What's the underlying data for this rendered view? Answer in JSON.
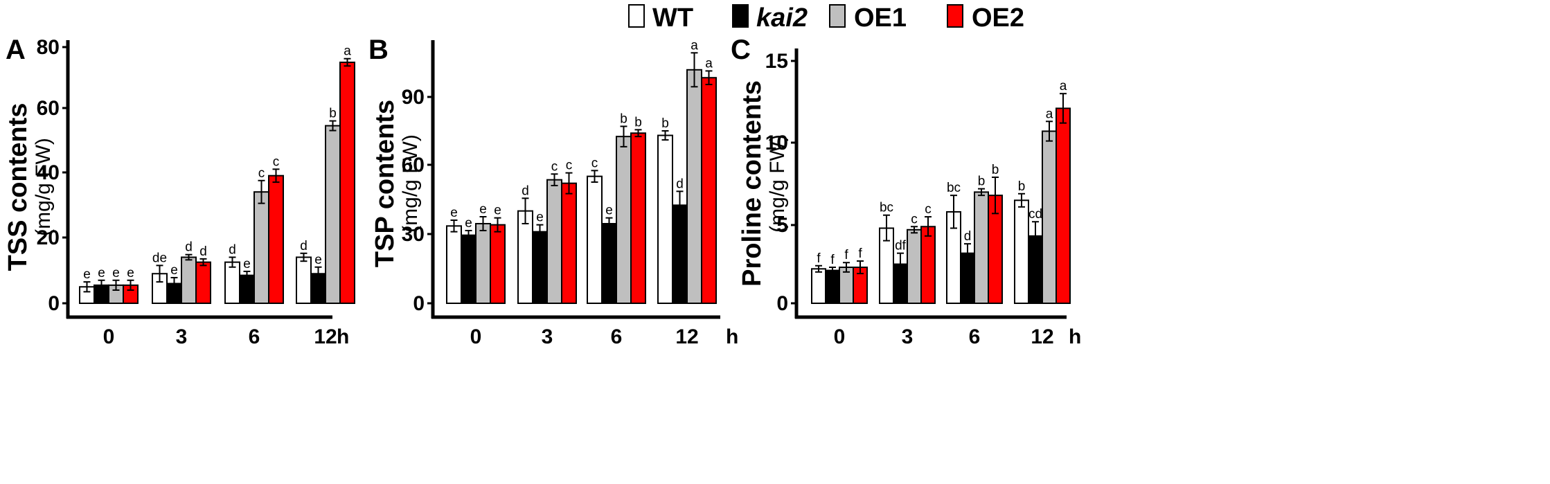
{
  "legend": {
    "entries": [
      {
        "name": "WT",
        "color": "#ffffff",
        "italic": false
      },
      {
        "name": "kai2",
        "color": "#000000",
        "italic": true
      },
      {
        "name": "OE1",
        "color": "#bfbfbf",
        "italic": false
      },
      {
        "name": "OE2",
        "color": "#ff0000",
        "italic": false
      }
    ]
  },
  "chart_data": [
    {
      "panel": "A",
      "type": "bar",
      "ylabel": "TSS contents",
      "ylabel_unit": "(mg/g FW)",
      "ylim": [
        0,
        80
      ],
      "yticks": [
        "0",
        "20",
        "40",
        "60",
        "80"
      ],
      "ytick_values": [
        0,
        20,
        40,
        60,
        80
      ],
      "categories": [
        "0",
        "3",
        "6",
        "12"
      ],
      "x_unit": "h",
      "series": [
        {
          "name": "WT",
          "color": "#ffffff",
          "values": [
            5.0,
            9.0,
            12.5,
            14.0
          ],
          "errors": [
            1.5,
            2.5,
            1.5,
            1.2
          ],
          "sig": [
            "e",
            "de",
            "d",
            "d"
          ]
        },
        {
          "name": "kai2",
          "color": "#000000",
          "values": [
            5.5,
            6.0,
            8.5,
            9.0
          ],
          "errors": [
            1.5,
            1.8,
            1.2,
            2.0
          ],
          "sig": [
            "e",
            "e",
            "e",
            "e"
          ]
        },
        {
          "name": "OE1",
          "color": "#bfbfbf",
          "values": [
            5.5,
            14.0,
            34.0,
            54.5
          ],
          "errors": [
            1.5,
            0.8,
            3.5,
            1.5
          ],
          "sig": [
            "e",
            "d",
            "c",
            "b"
          ]
        },
        {
          "name": "OE2",
          "color": "#ff0000",
          "values": [
            5.5,
            12.5,
            39.0,
            75.0
          ],
          "errors": [
            1.5,
            1.0,
            2.0,
            1.2
          ],
          "sig": [
            "e",
            "d",
            "c",
            "a"
          ]
        }
      ]
    },
    {
      "panel": "B",
      "type": "bar",
      "ylabel": "TSP contents",
      "ylabel_unit": "(mg/g FW)",
      "ylim": [
        0,
        115
      ],
      "yticks": [
        "0",
        "30",
        "60",
        "90"
      ],
      "ytick_values": [
        0,
        30,
        60,
        90
      ],
      "categories": [
        "0",
        "3",
        "6",
        "12"
      ],
      "x_unit": "h",
      "series": [
        {
          "name": "WT",
          "color": "#ffffff",
          "values": [
            33.5,
            40.0,
            55.0,
            73.0
          ],
          "errors": [
            2.5,
            5.5,
            2.5,
            2.0
          ],
          "sig": [
            "e",
            "d",
            "c",
            "b"
          ]
        },
        {
          "name": "kai2",
          "color": "#000000",
          "values": [
            29.5,
            31.0,
            34.5,
            42.5
          ],
          "errors": [
            2.0,
            3.0,
            2.5,
            6.0
          ],
          "sig": [
            "e",
            "e",
            "e",
            "d"
          ]
        },
        {
          "name": "OE1",
          "color": "#bfbfbf",
          "values": [
            34.5,
            53.5,
            72.5,
            102.0
          ],
          "errors": [
            3.0,
            2.5,
            4.5,
            7.5
          ],
          "sig": [
            "e",
            "c",
            "b",
            "a"
          ]
        },
        {
          "name": "OE2",
          "color": "#ff0000",
          "values": [
            34.0,
            52.0,
            74.0,
            98.5
          ],
          "errors": [
            3.0,
            4.5,
            1.5,
            3.0
          ],
          "sig": [
            "e",
            "c",
            "b",
            "a"
          ]
        }
      ]
    },
    {
      "panel": "C",
      "type": "bar",
      "ylabel": "Proline contents",
      "ylabel_unit": "(mg/g FW)",
      "ylim": [
        0,
        16
      ],
      "yticks": [
        "0",
        "5",
        "10",
        "15"
      ],
      "ytick_values": [
        0,
        5,
        10,
        15
      ],
      "categories": [
        "0",
        "3",
        "6",
        "12"
      ],
      "x_unit": "h",
      "series": [
        {
          "name": "WT",
          "color": "#ffffff",
          "values": [
            2.2,
            4.8,
            5.8,
            6.5
          ],
          "errors": [
            0.2,
            0.8,
            1.0,
            0.4
          ],
          "sig": [
            "f",
            "bc",
            "bc",
            "b"
          ]
        },
        {
          "name": "kai2",
          "color": "#000000",
          "values": [
            2.1,
            2.5,
            3.2,
            4.3
          ],
          "errors": [
            0.2,
            0.7,
            0.6,
            0.9
          ],
          "sig": [
            "f",
            "df",
            "d",
            "cd"
          ]
        },
        {
          "name": "OE1",
          "color": "#bfbfbf",
          "values": [
            2.3,
            4.7,
            7.0,
            10.7
          ],
          "errors": [
            0.3,
            0.2,
            0.2,
            0.6
          ],
          "sig": [
            "f",
            "c",
            "b",
            "a"
          ]
        },
        {
          "name": "OE2",
          "color": "#ff0000",
          "values": [
            2.3,
            4.9,
            6.8,
            12.1
          ],
          "errors": [
            0.4,
            0.6,
            1.1,
            0.9
          ],
          "sig": [
            "f",
            "c",
            "b",
            "a"
          ]
        }
      ]
    }
  ]
}
